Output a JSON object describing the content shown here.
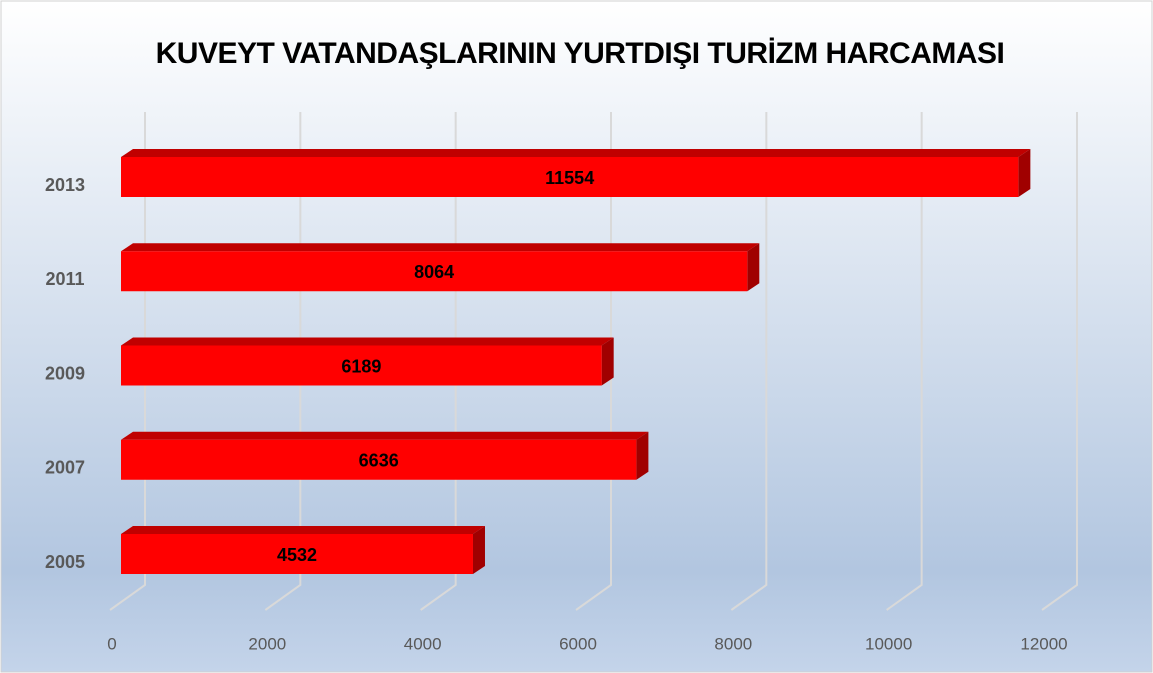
{
  "chart_data": {
    "type": "bar",
    "orientation": "horizontal",
    "title": "KUVEYT VATANDAŞLARININ YURTDIŞI TURİZM HARCAMASI",
    "categories": [
      "2005",
      "2007",
      "2009",
      "2011",
      "2013"
    ],
    "values": [
      4532,
      6636,
      6189,
      8064,
      11554
    ],
    "color": "#ff0000",
    "xlim": [
      0,
      12000
    ],
    "xticks": [
      0,
      2000,
      4000,
      6000,
      8000,
      10000,
      12000
    ],
    "grid": true
  }
}
